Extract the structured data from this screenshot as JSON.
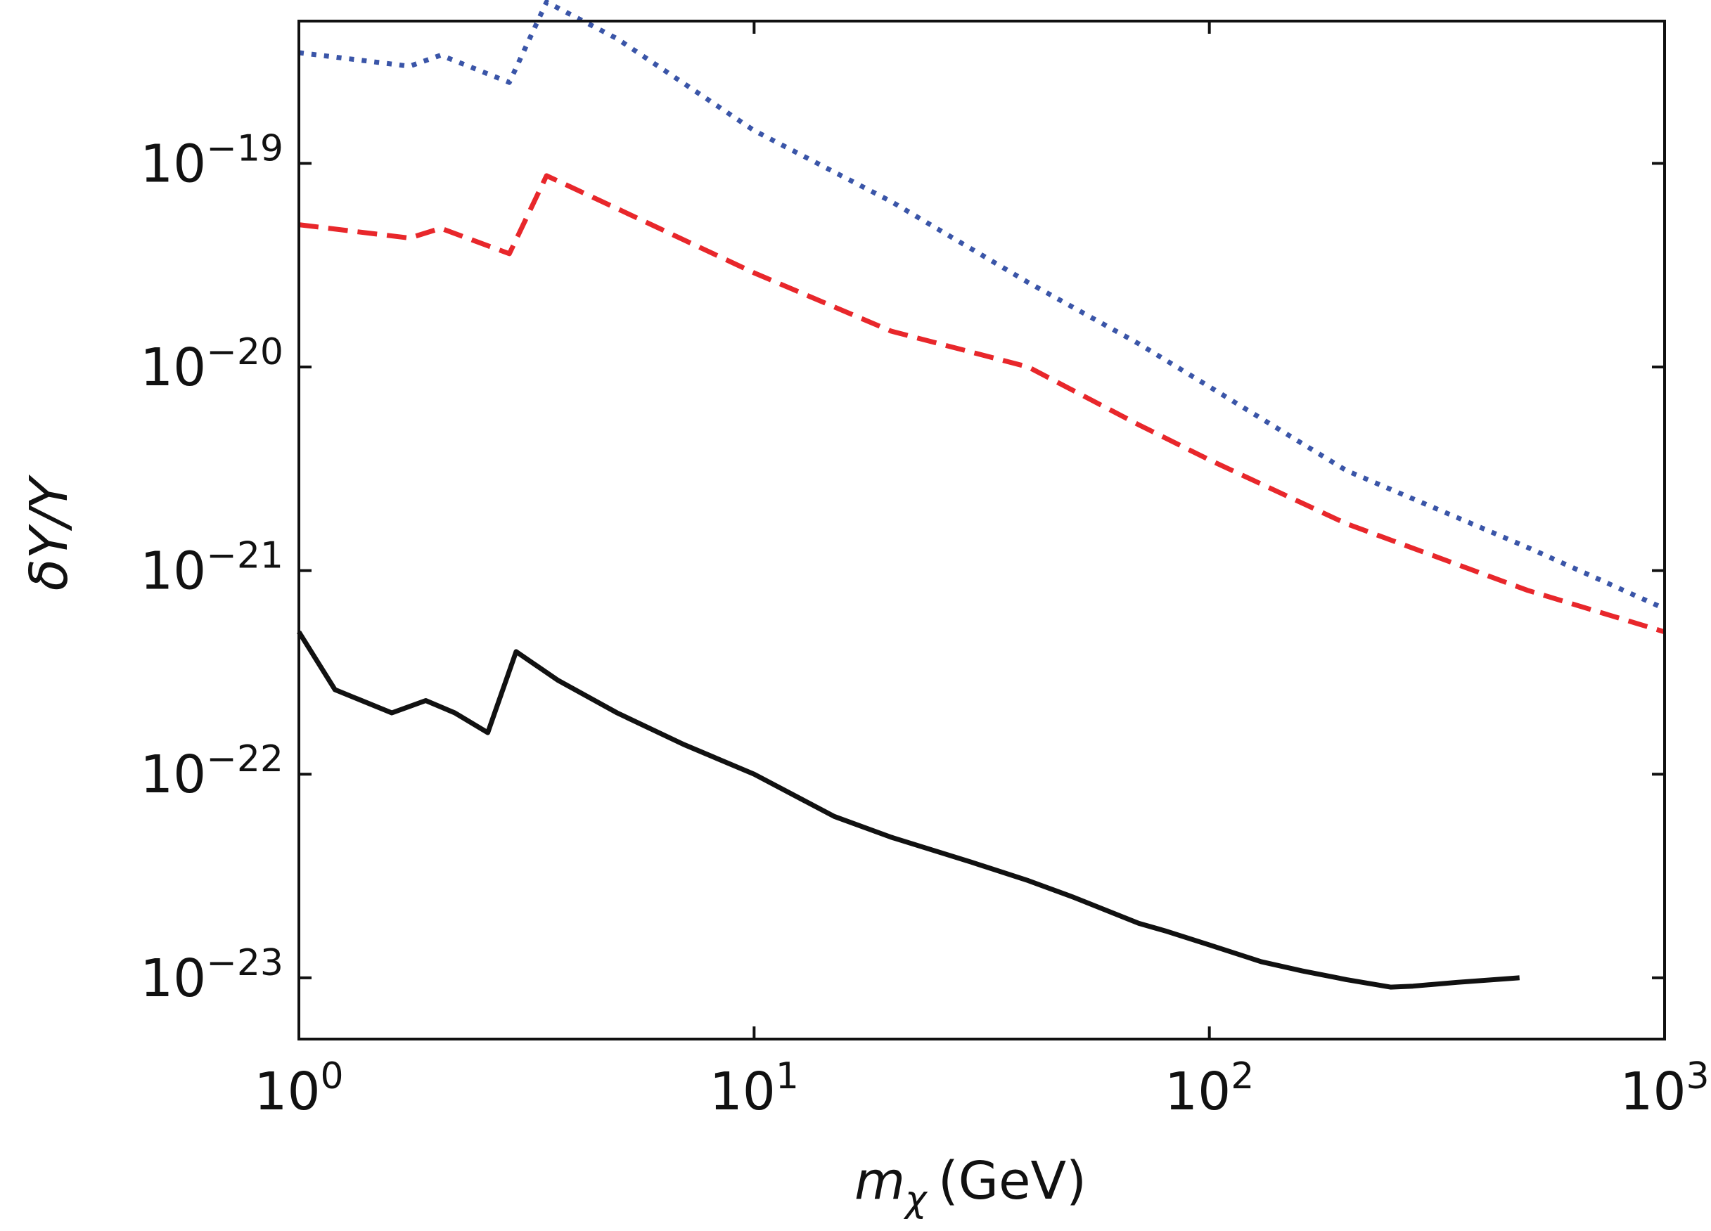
{
  "chart_data": {
    "type": "line",
    "xscale": "log",
    "yscale": "log",
    "xlim": [
      1,
      1000
    ],
    "ylim": [
      5e-24,
      5e-19
    ],
    "xlabel": "m",
    "xlabel_sub": "χ",
    "xlabel_units": "(GeV)",
    "ylabel": "δY/Y",
    "x_ticks": [
      {
        "value": 1,
        "base": "10",
        "exp": "0"
      },
      {
        "value": 10,
        "base": "10",
        "exp": "1"
      },
      {
        "value": 100,
        "base": "10",
        "exp": "2"
      },
      {
        "value": 1000,
        "base": "10",
        "exp": "3"
      }
    ],
    "y_ticks": [
      {
        "value": 1e-19,
        "base": "10",
        "exp": "−19"
      },
      {
        "value": 1e-20,
        "base": "10",
        "exp": "−20"
      },
      {
        "value": 1e-21,
        "base": "10",
        "exp": "−21"
      },
      {
        "value": 1e-22,
        "base": "10",
        "exp": "−22"
      },
      {
        "value": 1e-23,
        "base": "10",
        "exp": "−23"
      }
    ],
    "series": [
      {
        "name": "dotted-blue",
        "style": "dotted",
        "color": "#3a55a8",
        "x": [
          1.0,
          1.75,
          2.05,
          2.9,
          3.5,
          5,
          10,
          20,
          40,
          70,
          100,
          200,
          500,
          1000
        ],
        "y": [
          3.5e-19,
          3e-19,
          3.4e-19,
          2.5e-19,
          6.2e-19,
          4.1e-19,
          1.45e-19,
          6.5e-20,
          2.6e-20,
          1.3e-20,
          8e-21,
          3.1e-21,
          1.3e-21,
          6.5e-22
        ]
      },
      {
        "name": "dashed-red",
        "style": "dashed",
        "color": "#e8272b",
        "x": [
          1.0,
          1.75,
          2.05,
          2.9,
          3.5,
          5,
          10,
          20,
          40,
          70,
          100,
          200,
          500,
          1000
        ],
        "y": [
          5e-20,
          4.3e-20,
          4.8e-20,
          3.6e-20,
          8.7e-20,
          6e-20,
          2.9e-20,
          1.5e-20,
          1e-20,
          5.2e-21,
          3.5e-21,
          1.7e-21,
          8e-22,
          5e-22
        ]
      },
      {
        "name": "solid-black",
        "style": "solid",
        "color": "#111111",
        "x": [
          1.0,
          1.2,
          1.6,
          1.9,
          2.2,
          2.6,
          3.0,
          3.7,
          5,
          7,
          10,
          15,
          20,
          30,
          40,
          50,
          70,
          80,
          100,
          130,
          160,
          200,
          250,
          280,
          350,
          480
        ],
        "y": [
          5e-22,
          2.6e-22,
          2e-22,
          2.3e-22,
          2e-22,
          1.6e-22,
          4e-22,
          2.9e-22,
          2e-22,
          1.4e-22,
          1e-22,
          6.2e-23,
          4.9e-23,
          3.7e-23,
          3e-23,
          2.5e-23,
          1.85e-23,
          1.7e-23,
          1.45e-23,
          1.2e-23,
          1.08e-23,
          9.8e-24,
          9e-24,
          9.1e-24,
          9.5e-24,
          1e-23
        ]
      }
    ]
  }
}
